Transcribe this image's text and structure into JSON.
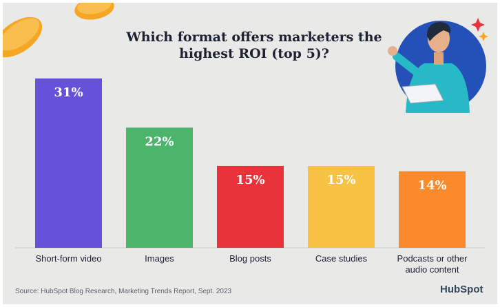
{
  "chart_data": {
    "type": "bar",
    "title": "Which format offers marketers the highest ROI (top 5)?",
    "title_lines": [
      "Which format offers marketers the",
      "highest ROI (top 5)?"
    ],
    "categories": [
      "Short-form video",
      "Images",
      "Blog posts",
      "Case studies",
      "Podcasts or other audio content"
    ],
    "category_lines": [
      [
        "Short-form video"
      ],
      [
        "Images"
      ],
      [
        "Blog posts"
      ],
      [
        "Case studies"
      ],
      [
        "Podcasts or other",
        "audio content"
      ]
    ],
    "values": [
      31,
      22,
      15,
      15,
      14
    ],
    "data_labels": [
      "31%",
      "22%",
      "15%",
      "15%",
      "14%"
    ],
    "colors": [
      "#6453d9",
      "#4cb56b",
      "#e8333b",
      "#f8c245",
      "#fb8a2c"
    ],
    "ylim": [
      0,
      31
    ],
    "grid": false,
    "legend": "none"
  },
  "footer": {
    "source": "Source: HubSpot Blog Research, Marketing Trends Report, Sept. 2023",
    "logo": "HubSpot"
  }
}
